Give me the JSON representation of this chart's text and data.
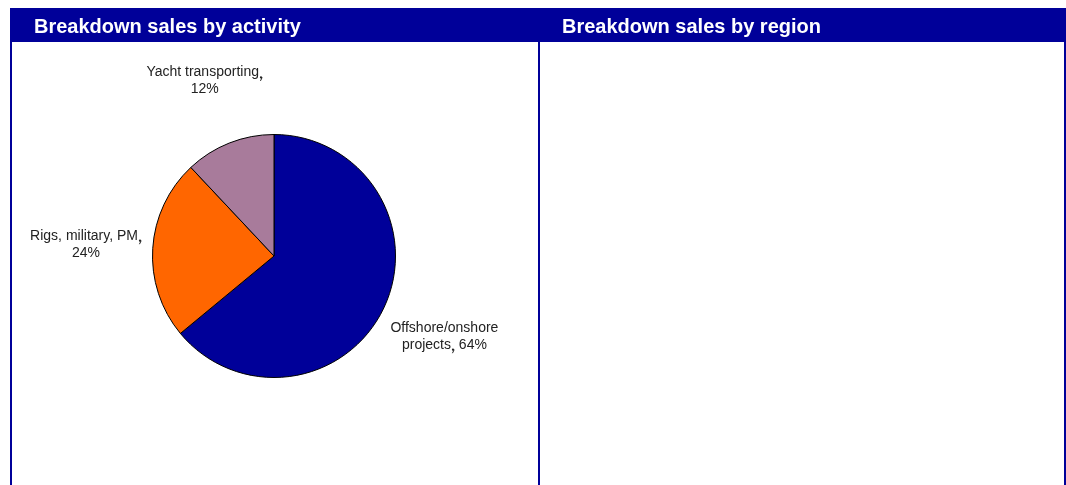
{
  "chart_data": [
    {
      "type": "pie",
      "title": "Breakdown sales by activity",
      "categories": [
        "Offshore/onshore projects",
        "Rigs, military, PM",
        "Yacht transporting"
      ],
      "values": [
        64,
        24,
        12
      ],
      "colors": [
        "#000099",
        "#ff6600",
        "#a87b9b"
      ],
      "value_labels": [
        "64%",
        "24%",
        "12%"
      ],
      "legend": false
    },
    {
      "type": "other",
      "title": "Breakdown sales by region"
    }
  ]
}
